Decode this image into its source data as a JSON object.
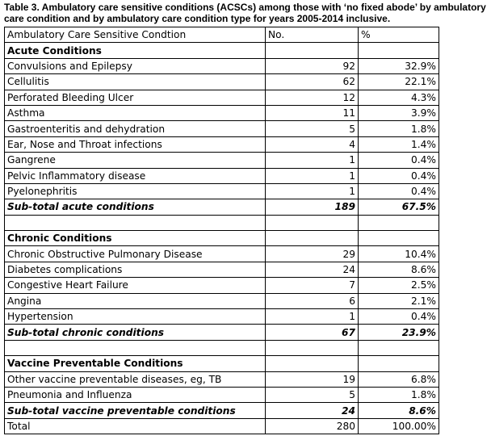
{
  "caption": "Table 3. Ambulatory care sensitive conditions (ACSCs) among those with ‘no fixed abode’ by ambulatory care condition and by ambulatory care condition type for years 2005-2014 inclusive.",
  "header": {
    "condition": "Ambulatory Care Sensitive Condtion",
    "no": "No.",
    "pct": "%"
  },
  "acute": {
    "heading": "Acute Conditions",
    "rows": [
      {
        "name": "Convulsions and Epilepsy",
        "no": "92",
        "pct": "32.9%"
      },
      {
        "name": "Cellulitis",
        "no": "62",
        "pct": "22.1%"
      },
      {
        "name": "Perforated Bleeding Ulcer",
        "no": "12",
        "pct": "4.3%"
      },
      {
        "name": "Asthma",
        "no": "11",
        "pct": "3.9%"
      },
      {
        "name": "Gastroenteritis and dehydration",
        "no": "5",
        "pct": "1.8%"
      },
      {
        "name": "Ear, Nose and Throat infections",
        "no": "4",
        "pct": "1.4%"
      },
      {
        "name": "Gangrene",
        "no": "1",
        "pct": "0.4%"
      },
      {
        "name": "Pelvic Inflammatory disease",
        "no": "1",
        "pct": "0.4%"
      },
      {
        "name": "Pyelonephritis",
        "no": "1",
        "pct": "0.4%"
      }
    ],
    "subtotal": {
      "label": "Sub-total acute conditions",
      "no": "189",
      "pct": "67.5%"
    }
  },
  "chronic": {
    "heading": "Chronic Conditions",
    "rows": [
      {
        "name": "Chronic Obstructive Pulmonary Disease",
        "no": "29",
        "pct": "10.4%"
      },
      {
        "name": "Diabetes complications",
        "no": "24",
        "pct": "8.6%"
      },
      {
        "name": "Congestive Heart Failure",
        "no": "7",
        "pct": "2.5%"
      },
      {
        "name": "Angina",
        "no": "6",
        "pct": "2.1%"
      },
      {
        "name": "Hypertension",
        "no": "1",
        "pct": "0.4%"
      }
    ],
    "subtotal": {
      "label": "Sub-total chronic conditions",
      "no": "67",
      "pct": "23.9%"
    }
  },
  "vaccine": {
    "heading": "Vaccine Preventable Conditions",
    "rows": [
      {
        "name": "Other vaccine preventable diseases, eg, TB",
        "no": "19",
        "pct": "6.8%"
      },
      {
        "name": "Pneumonia and Influenza",
        "no": "5",
        "pct": "1.8%"
      }
    ],
    "subtotal": {
      "label": "Sub-total vaccine preventable conditions",
      "no": "24",
      "pct": "8.6%"
    }
  },
  "total": {
    "label": "Total",
    "no": "280",
    "pct": "100.00%"
  }
}
